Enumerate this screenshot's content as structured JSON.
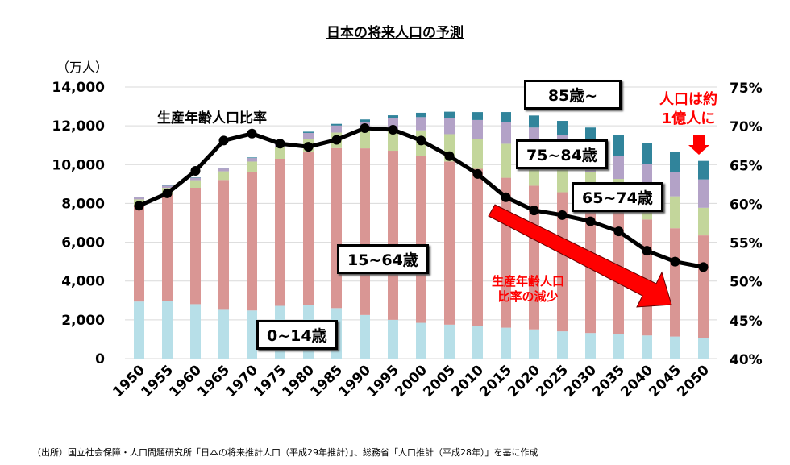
{
  "chart_data": {
    "type": "bar",
    "title": "日本の将来人口の予測",
    "ylabel": "（万人）",
    "ylim": [
      0,
      14000
    ],
    "y_ticks": [
      "0",
      "2,000",
      "4,000",
      "6,000",
      "8,000",
      "10,000",
      "12,000",
      "14,000"
    ],
    "y2lim": [
      40,
      75
    ],
    "y2_ticks": [
      "40%",
      "45%",
      "50%",
      "55%",
      "60%",
      "65%",
      "70%",
      "75%"
    ],
    "categories": [
      "1950",
      "1955",
      "1960",
      "1965",
      "1970",
      "1975",
      "1980",
      "1985",
      "1990",
      "1995",
      "2000",
      "2005",
      "2010",
      "2015",
      "2020",
      "2025",
      "2030",
      "2035",
      "2040",
      "2045",
      "2050"
    ],
    "series": [
      {
        "name": "0~14歳",
        "color": "#b7dfe8",
        "values": [
          2943,
          2980,
          2807,
          2517,
          2482,
          2722,
          2751,
          2603,
          2249,
          2001,
          1847,
          1752,
          1680,
          1595,
          1507,
          1407,
          1321,
          1246,
          1194,
          1138,
          1077
        ]
      },
      {
        "name": "15~64歳",
        "color": "#d99694",
        "values": [
          4966,
          5473,
          6000,
          6693,
          7157,
          7581,
          7883,
          8251,
          8590,
          8716,
          8622,
          8409,
          8103,
          7728,
          7406,
          7170,
          6875,
          6494,
          5978,
          5584,
          5275
        ]
      },
      {
        "name": "65~74歳",
        "color": "#c3d69b",
        "values": [
          300,
          350,
          390,
          445,
          520,
          620,
          700,
          800,
          900,
          1110,
          1300,
          1410,
          1517,
          1752,
          1747,
          1497,
          1428,
          1522,
          1681,
          1643,
          1424
        ]
      },
      {
        "name": "75~84歳",
        "color": "#b3a2c7",
        "values": [
          97,
          110,
          125,
          145,
          180,
          225,
          300,
          360,
          475,
          560,
          680,
          820,
          1000,
          1139,
          1252,
          1462,
          1416,
          1182,
          1173,
          1259,
          1461
        ]
      },
      {
        "name": "85歳~",
        "color": "#31849b",
        "values": [
          14,
          15,
          20,
          28,
          33,
          42,
          65,
          87,
          114,
          156,
          224,
          337,
          408,
          496,
          620,
          718,
          872,
          1078,
          1067,
          1017,
          956
        ]
      }
    ],
    "line": {
      "name": "生産年齢人口比率",
      "axis": "right",
      "values": [
        59.7,
        61.3,
        64.2,
        68.1,
        69.0,
        67.7,
        67.3,
        68.2,
        69.7,
        69.5,
        68.1,
        66.1,
        63.8,
        60.8,
        59.1,
        58.5,
        57.7,
        56.4,
        53.9,
        52.5,
        51.8
      ]
    },
    "annotations": {
      "decline": "生産年齢人口\n比率の減少",
      "decline_1": "生産年齢人口",
      "decline_2": "比率の減少",
      "pop_1": "人口は約",
      "pop_2": "1億人に"
    },
    "colors": {
      "line": "#000000",
      "arrow": "#ff0000",
      "grid": "#d9d9d9"
    }
  },
  "footer": "（出所）国立社会保障・人口問題研究所「日本の将来推計人口（平成29年推計）」、総務省「人口推計（平成28年）」を基に作成"
}
